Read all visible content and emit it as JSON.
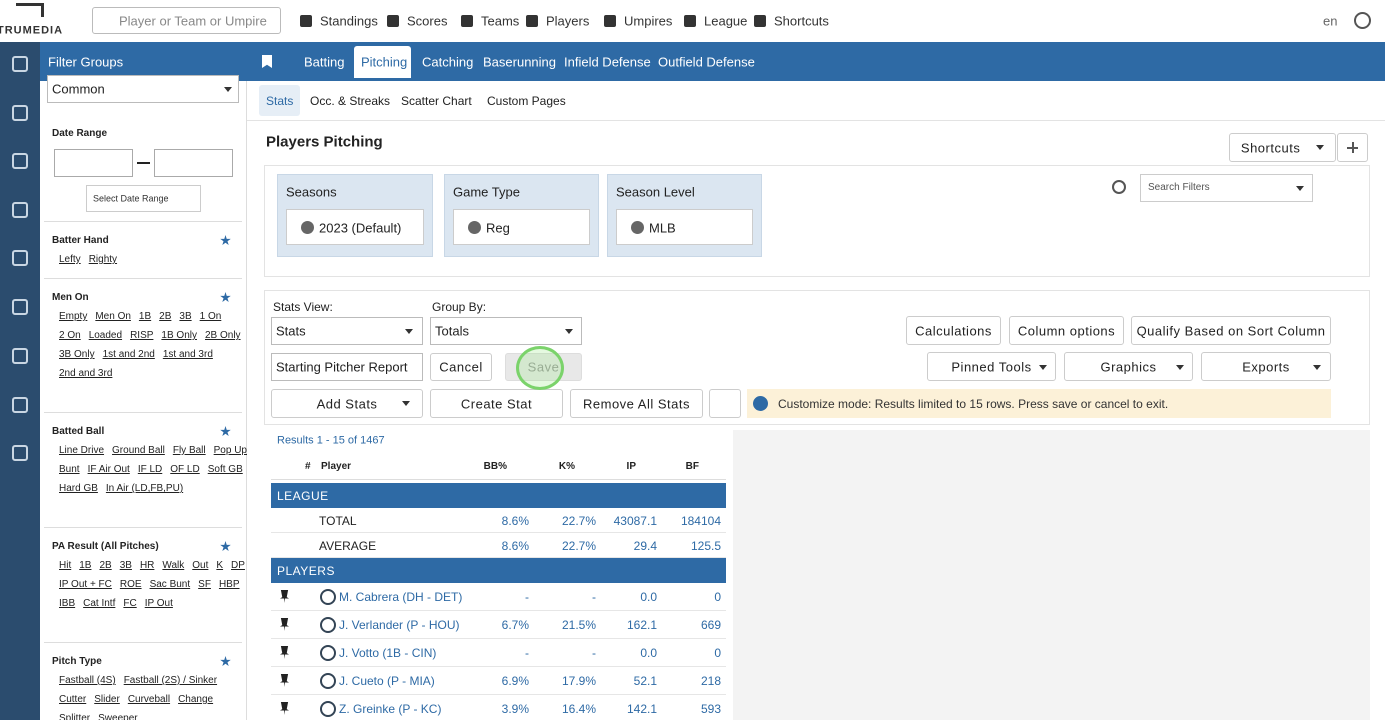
{
  "nav": {
    "logo": "TRUMEDIA",
    "search_placeholder": "Player or Team or Umpire",
    "links": [
      "Standings",
      "Scores",
      "Teams",
      "Players",
      "Umpires",
      "League",
      "Shortcuts"
    ],
    "language": "en"
  },
  "sidebar": {
    "title": "Filter Groups",
    "group": "Common",
    "date_range": {
      "title": "Date Range",
      "button": "Select Date Range"
    },
    "sections": [
      {
        "title": "Batter Hand",
        "items": [
          "Lefty",
          "Righty"
        ]
      },
      {
        "title": "Men On",
        "items": [
          "Empty",
          "Men On",
          "1B",
          "2B",
          "3B",
          "1 On",
          "2 On",
          "Loaded",
          "RISP",
          "1B Only",
          "2B Only",
          "3B Only",
          "1st and 2nd",
          "1st and 3rd",
          "2nd and 3rd"
        ]
      },
      {
        "title": "Batted Ball",
        "items": [
          "Line Drive",
          "Ground Ball",
          "Fly Ball",
          "Pop Up",
          "Bunt",
          "IF Air Out",
          "IF LD",
          "OF LD",
          "Soft GB",
          "Hard GB",
          "In Air (LD,FB,PU)"
        ]
      },
      {
        "title": "PA Result (All Pitches)",
        "items": [
          "Hit",
          "1B",
          "2B",
          "3B",
          "HR",
          "Walk",
          "Out",
          "K",
          "DP",
          "IP Out + FC",
          "ROE",
          "Sac Bunt",
          "SF",
          "HBP",
          "IBB",
          "Cat Intf",
          "FC",
          "IP Out"
        ]
      },
      {
        "title": "Pitch Type",
        "items": [
          "Fastball (4S)",
          "Fastball (2S) / Sinker",
          "Cutter",
          "Slider",
          "Curveball",
          "Change",
          "Splitter",
          "Sweeper"
        ]
      }
    ]
  },
  "tabs": [
    "Batting",
    "Pitching",
    "Catching",
    "Baserunning",
    "Infield Defense",
    "Outfield Defense"
  ],
  "subtabs": [
    "Stats",
    "Occ. & Streaks",
    "Scatter Chart",
    "Custom Pages"
  ],
  "page_title": "Players Pitching",
  "shortcuts": "Shortcuts",
  "search_filters": "Search Filters",
  "filters": [
    {
      "label": "Seasons",
      "value": "2023 (Default)"
    },
    {
      "label": "Game Type",
      "value": "Reg"
    },
    {
      "label": "Season Level",
      "value": "MLB"
    }
  ],
  "controls": {
    "stats_view_label": "Stats View:",
    "stats_view": "Stats",
    "group_by_label": "Group By:",
    "group_by": "Totals",
    "report": "Starting Pitcher Report",
    "buttons": [
      "Calculations",
      "Column options",
      "Qualify Based on Sort Column",
      "Cancel",
      "Save",
      "Pinned Tools",
      "Graphics",
      "Exports",
      "Add Stats",
      "Create Stat",
      "Remove All Stats"
    ]
  },
  "notice": "Customize mode: Results limited to 15 rows. Press save or cancel to exit.",
  "table": {
    "results": "Results 1 - 15 of 1467",
    "columns": [
      "#",
      "Player",
      "BB%",
      "K%",
      "IP",
      "BF"
    ],
    "sections": [
      {
        "title": "LEAGUE",
        "rows": [
          [
            "TOTAL",
            "8.6%",
            "22.7%",
            "43087.1",
            "184104"
          ],
          [
            "AVERAGE",
            "8.6%",
            "22.7%",
            "29.4",
            "125.5"
          ]
        ]
      },
      {
        "title": "PLAYERS",
        "rows": [
          [
            "M. Cabrera (DH - DET)",
            "-",
            "-",
            "0.0",
            "0"
          ],
          [
            "J. Verlander (P - HOU)",
            "6.7%",
            "21.5%",
            "162.1",
            "669"
          ],
          [
            "J. Votto (1B - CIN)",
            "-",
            "-",
            "0.0",
            "0"
          ],
          [
            "J. Cueto (P - MIA)",
            "6.9%",
            "17.9%",
            "52.1",
            "218"
          ],
          [
            "Z. Greinke (P - KC)",
            "3.9%",
            "16.4%",
            "142.1",
            "593"
          ]
        ]
      }
    ]
  }
}
